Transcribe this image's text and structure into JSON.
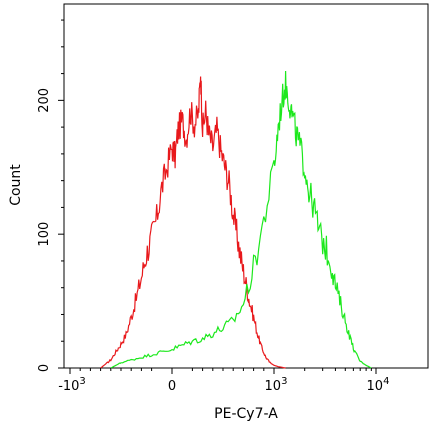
{
  "chart_data": {
    "type": "line",
    "title": "",
    "xlabel": "PE-Cy7-A",
    "ylabel": "Count",
    "x_scale": "biexponential",
    "ylim": [
      0,
      272
    ],
    "grid": false,
    "legend": "none",
    "x_ticks": [
      {
        "label": "-10",
        "exp": "3",
        "value": -1000
      },
      {
        "label": "0",
        "exp": "",
        "value": 0
      },
      {
        "label": "10",
        "exp": "3",
        "value": 1000
      },
      {
        "label": "10",
        "exp": "4",
        "value": 10000
      }
    ],
    "y_ticks": [
      0,
      100,
      200
    ],
    "series": [
      {
        "color": "#e8191c",
        "points": [
          [
            -700,
            0
          ],
          [
            -650,
            3
          ],
          [
            -600,
            6
          ],
          [
            -550,
            12
          ],
          [
            -500,
            18
          ],
          [
            -450,
            25
          ],
          [
            -400,
            38
          ],
          [
            -350,
            52
          ],
          [
            -300,
            68
          ],
          [
            -250,
            85
          ],
          [
            -200,
            98
          ],
          [
            -150,
            112
          ],
          [
            -100,
            135
          ],
          [
            -50,
            150
          ],
          [
            0,
            165
          ],
          [
            30,
            158
          ],
          [
            60,
            178
          ],
          [
            100,
            185
          ],
          [
            140,
            172
          ],
          [
            180,
            192
          ],
          [
            220,
            182
          ],
          [
            260,
            190
          ],
          [
            280,
            222
          ],
          [
            300,
            178
          ],
          [
            330,
            192
          ],
          [
            360,
            175
          ],
          [
            400,
            165
          ],
          [
            440,
            178
          ],
          [
            480,
            162
          ],
          [
            520,
            150
          ],
          [
            560,
            138
          ],
          [
            600,
            115
          ],
          [
            640,
            98
          ],
          [
            680,
            80
          ],
          [
            720,
            65
          ],
          [
            760,
            50
          ],
          [
            800,
            38
          ],
          [
            840,
            25
          ],
          [
            880,
            15
          ],
          [
            920,
            8
          ],
          [
            960,
            4
          ],
          [
            1000,
            2
          ],
          [
            1100,
            1
          ],
          [
            1300,
            0
          ]
        ]
      },
      {
        "color": "#1ce81c",
        "points": [
          [
            -600,
            0
          ],
          [
            -550,
            2
          ],
          [
            -500,
            4
          ],
          [
            -400,
            6
          ],
          [
            -300,
            8
          ],
          [
            -200,
            10
          ],
          [
            -100,
            12
          ],
          [
            0,
            14
          ],
          [
            100,
            17
          ],
          [
            200,
            20
          ],
          [
            300,
            22
          ],
          [
            400,
            26
          ],
          [
            500,
            30
          ],
          [
            600,
            35
          ],
          [
            700,
            48
          ],
          [
            800,
            75
          ],
          [
            900,
            110
          ],
          [
            1000,
            150
          ],
          [
            1100,
            180
          ],
          [
            1200,
            200
          ],
          [
            1300,
            212
          ],
          [
            1400,
            200
          ],
          [
            1500,
            190
          ],
          [
            1650,
            175
          ],
          [
            1800,
            165
          ],
          [
            2000,
            150
          ],
          [
            2200,
            132
          ],
          [
            2500,
            118
          ],
          [
            2800,
            100
          ],
          [
            3200,
            90
          ],
          [
            3600,
            78
          ],
          [
            4000,
            62
          ],
          [
            4500,
            48
          ],
          [
            5000,
            35
          ],
          [
            5600,
            22
          ],
          [
            6200,
            12
          ],
          [
            7000,
            5
          ],
          [
            8000,
            2
          ],
          [
            9000,
            0
          ]
        ]
      }
    ]
  }
}
